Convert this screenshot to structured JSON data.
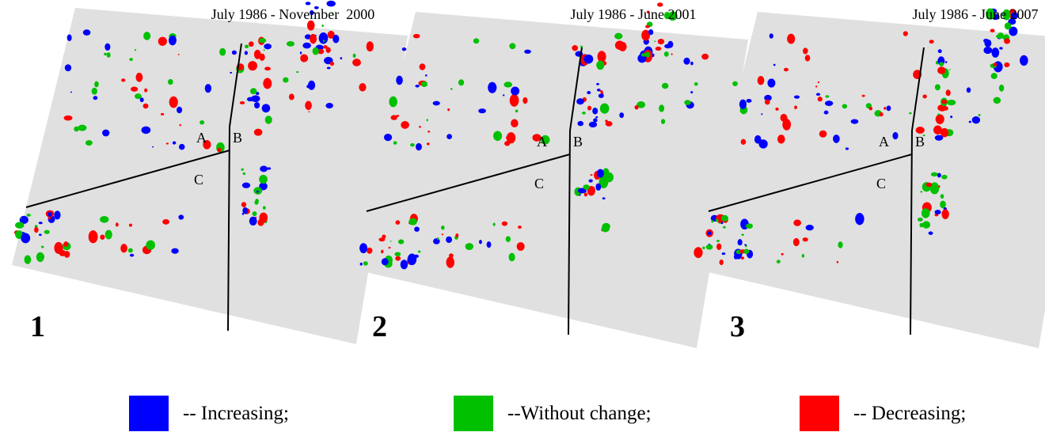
{
  "panels": [
    {
      "title": "July 1986 - November  2000",
      "number": "1",
      "regions": [
        "A",
        "B",
        "C"
      ]
    },
    {
      "title": "July 1986 - June 2001",
      "number": "2",
      "regions": [
        "A",
        "B",
        "C"
      ]
    },
    {
      "title": "July 1986 - June 2007",
      "number": "3",
      "regions": [
        "A",
        "B",
        "C"
      ]
    }
  ],
  "legend": [
    {
      "label": "-- Increasing;",
      "color": "#0000ff"
    },
    {
      "label": "--Without change;",
      "color": "#00c000"
    },
    {
      "label": "-- Decreasing;",
      "color": "#ff0000"
    }
  ]
}
